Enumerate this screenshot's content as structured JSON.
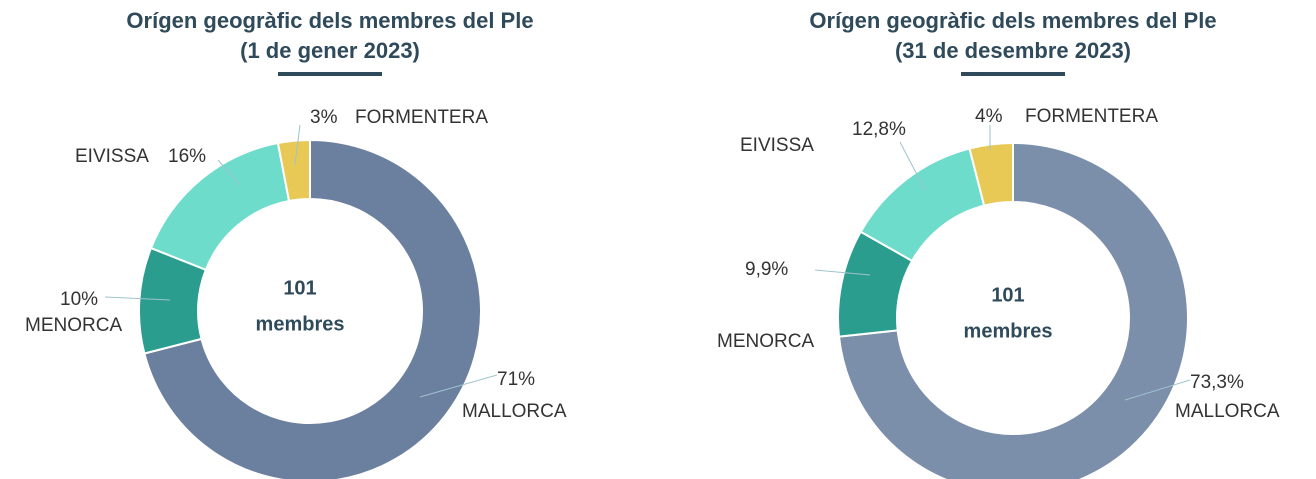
{
  "chart_data": [
    {
      "type": "pie",
      "title": "Orígen geogràfic dels membres del Ple",
      "subtitle": "(1 de gener 2023)",
      "center_label": [
        "101",
        "membres"
      ],
      "categories": [
        "MALLORCA",
        "MENORCA",
        "EIVISSA",
        "FORMENTERA"
      ],
      "values": [
        71,
        10,
        16,
        3
      ],
      "value_labels": [
        "71%",
        "10%",
        "16%",
        "3%"
      ],
      "colors": [
        "#6b7f9e",
        "#2a9d8f",
        "#6edccb",
        "#e8c955"
      ]
    },
    {
      "type": "pie",
      "title": "Orígen geogràfic dels membres del Ple",
      "subtitle": "(31 de desembre 2023)",
      "center_label": [
        "101",
        "membres"
      ],
      "categories": [
        "MALLORCA",
        "MENORCA",
        "EIVISSA",
        "FORMENTERA"
      ],
      "values": [
        73.3,
        9.9,
        12.8,
        4
      ],
      "value_labels": [
        "73,3%",
        "9,9%",
        "12,8%",
        "4%"
      ],
      "colors": [
        "#7b8faa",
        "#2a9d8f",
        "#6edccb",
        "#e8c955"
      ]
    }
  ]
}
